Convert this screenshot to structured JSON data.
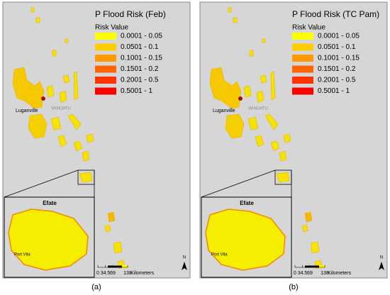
{
  "panels": [
    {
      "title": "P Flood Risk (Feb)",
      "legend": {
        "title": "Risk Value",
        "items": [
          {
            "label": "0.0001 - 0.05",
            "color": "#ffff00"
          },
          {
            "label": "0.0501 - 0.1",
            "color": "#ffcc00"
          },
          {
            "label": "0.1001 - 0.15",
            "color": "#ff9900"
          },
          {
            "label": "0.1501 - 0.2",
            "color": "#ff6600"
          },
          {
            "label": "0.2001 - 0.5",
            "color": "#ff3300"
          },
          {
            "label": "0.5001 - 1",
            "color": "#ff0000"
          }
        ]
      },
      "places": {
        "city": "Luganville",
        "country": "VANUATU",
        "inset": "Efate",
        "capital": "Port Vila"
      },
      "scale": {
        "ticks": [
          0,
          34.5,
          69,
          138
        ],
        "unit": "Kilometers"
      },
      "north": "N",
      "caption": "(a)"
    },
    {
      "title": "P Flood Risk (TC Pam)",
      "legend": {
        "title": "Risk Value",
        "items": [
          {
            "label": "0.0001 - 0.05",
            "color": "#ffff00"
          },
          {
            "label": "0.0501 - 0.1",
            "color": "#ffcc00"
          },
          {
            "label": "0.1001 - 0.15",
            "color": "#ff9900"
          },
          {
            "label": "0.1501 - 0.2",
            "color": "#ff6600"
          },
          {
            "label": "0.2001 - 0.5",
            "color": "#ff3300"
          },
          {
            "label": "0.5001 - 1",
            "color": "#ff0000"
          }
        ]
      },
      "places": {
        "city": "Luganville",
        "country": "VANUATU",
        "inset": "Efate",
        "capital": "Port Vila"
      },
      "scale": {
        "ticks": [
          0,
          34.5,
          69,
          138
        ],
        "unit": "Kilometers"
      },
      "north": "N",
      "caption": "(b)"
    }
  ]
}
